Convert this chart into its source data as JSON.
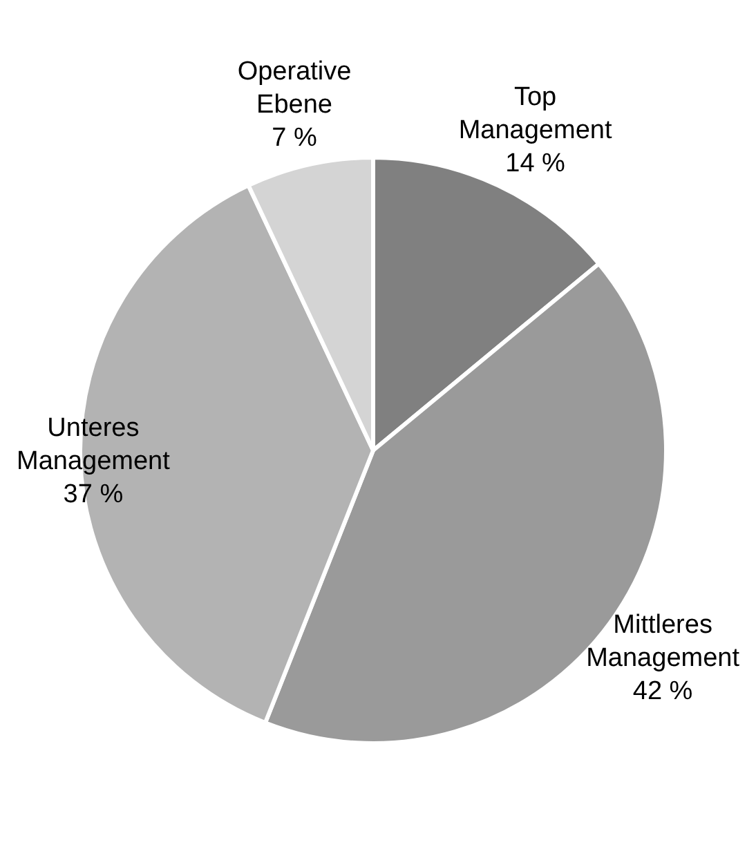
{
  "chart_data": {
    "type": "pie",
    "categories": [
      "Top Management",
      "Mittleres Management",
      "Unteres Management",
      "Operative Ebene"
    ],
    "values": [
      14,
      42,
      37,
      7
    ],
    "value_labels": [
      "14 %",
      "42 %",
      "37 %",
      "7 %"
    ],
    "colors": [
      "#808080",
      "#9a9a9a",
      "#b3b3b3",
      "#d4d4d4"
    ],
    "legend": false
  }
}
